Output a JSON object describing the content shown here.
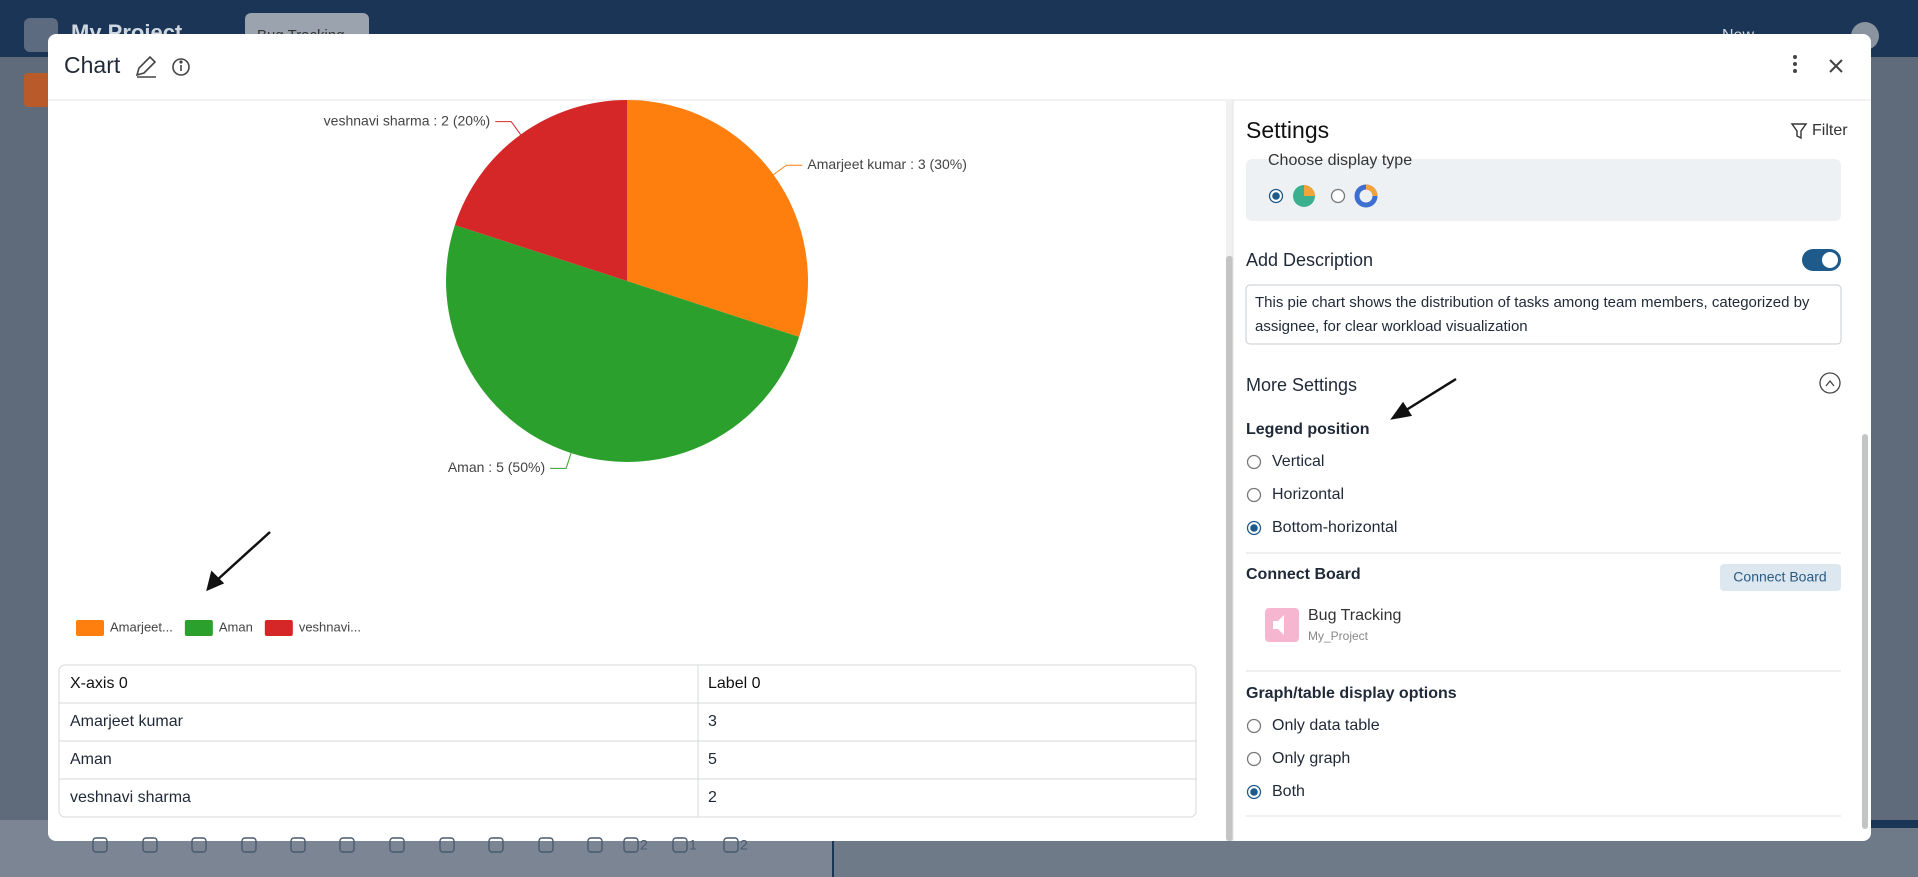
{
  "background": {
    "project_title": "My Project",
    "tab": "Bug Tracking",
    "new_button": "New"
  },
  "modal": {
    "title": "Chart"
  },
  "chart_data": {
    "type": "pie",
    "categories": [
      "Amarjeet kumar",
      "Aman",
      "veshnavi sharma"
    ],
    "values": [
      3,
      5,
      2
    ],
    "value_labels": [
      "Amarjeet kumar : 3 (30%)",
      "Aman : 5 (50%)",
      "veshnavi sharma : 2 (20%)"
    ],
    "colors": [
      "#ff7f0e",
      "#2ca02c",
      "#d62728"
    ],
    "legend_labels": [
      "Amarjeet...",
      "Aman",
      "veshnavi..."
    ],
    "legend": "bottom-left"
  },
  "table": {
    "header": [
      "X-axis 0",
      "Label 0"
    ],
    "rows": [
      [
        "Amarjeet kumar",
        3
      ],
      [
        "Aman",
        5
      ],
      [
        "veshnavi sharma",
        2
      ]
    ]
  },
  "settings": {
    "title": "Settings",
    "filter": "Filter",
    "display_type_label": "Choose display type",
    "add_description": "Add Description",
    "description": "This pie chart shows the distribution of tasks among team members, categorized by assignee, for clear workload visualization",
    "more_settings": "More Settings",
    "legend_position": {
      "label": "Legend position",
      "options": [
        "Vertical",
        "Horizontal",
        "Bottom-horizontal"
      ],
      "selected": 2
    },
    "connect_board": {
      "label": "Connect Board",
      "button": "Connect Board",
      "board_name": "Bug Tracking",
      "board_project": "My_Project"
    },
    "display_options": {
      "label": "Graph/table display options",
      "options": [
        "Only data table",
        "Only graph",
        "Both"
      ],
      "selected": 2
    }
  },
  "toolbar": {
    "counts": [
      2,
      1,
      2
    ]
  }
}
